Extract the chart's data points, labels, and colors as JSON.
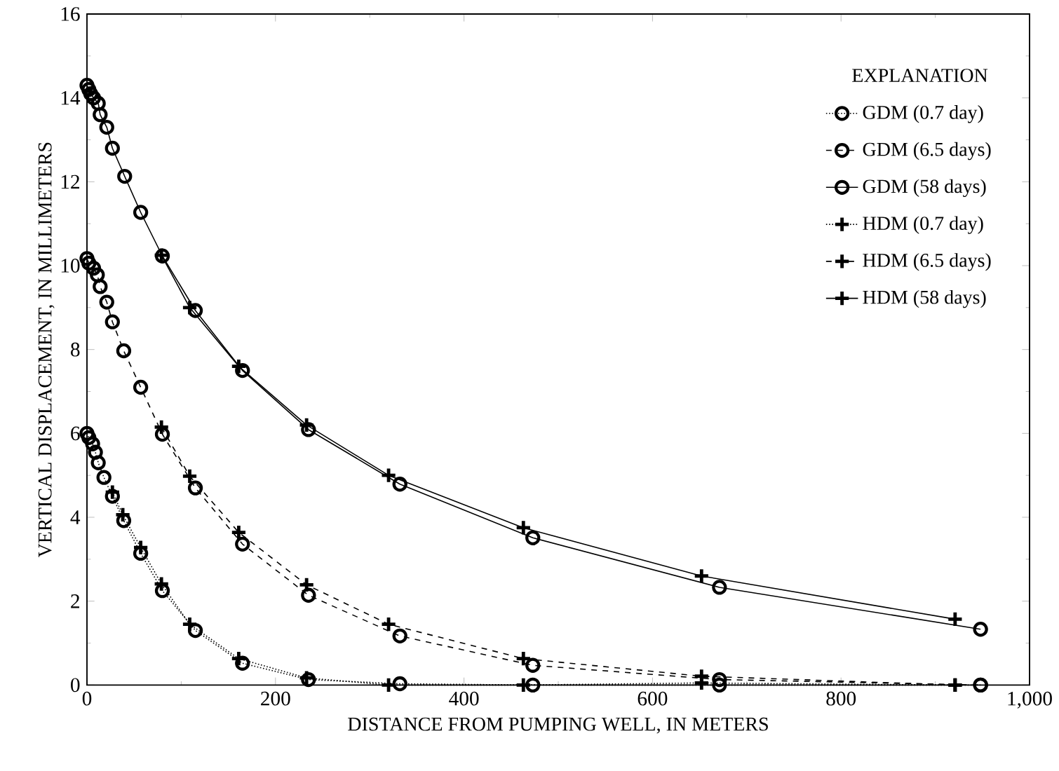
{
  "chart_data": {
    "type": "line",
    "xlabel": "DISTANCE FROM PUMPING WELL, IN METERS",
    "ylabel": "VERTICAL DISPLACEMENT, IN MILLIMETERS",
    "xlim": [
      0,
      1000
    ],
    "ylim": [
      0,
      16
    ],
    "xticks": [
      0,
      200,
      400,
      600,
      800,
      {
        "value": 1000,
        "label": "1,000"
      }
    ],
    "yticks": [
      0,
      2,
      4,
      6,
      8,
      10,
      12,
      14,
      16
    ],
    "legend": "top right",
    "legend_title": "EXPLANATION",
    "series": [
      {
        "name": "GDM (0.7 day)",
        "color": "#000000",
        "marker": "circle",
        "line_style": "dotted",
        "x": [
          0,
          2,
          6,
          9,
          12,
          18,
          27,
          39,
          57,
          80,
          115,
          165,
          235,
          332,
          473,
          671,
          948
        ],
        "values": [
          6.0,
          5.9,
          5.75,
          5.55,
          5.3,
          4.95,
          4.5,
          3.92,
          3.14,
          2.25,
          1.3,
          0.52,
          0.13,
          0.03,
          0,
          0,
          0
        ]
      },
      {
        "name": "GDM (6.5 days)",
        "color": "#000000",
        "marker": "circle",
        "line_style": "dashed",
        "x": [
          0,
          2,
          7,
          11,
          14,
          21,
          27,
          39,
          57,
          80,
          115,
          165,
          235,
          332,
          473,
          671,
          948
        ],
        "values": [
          10.17,
          10.06,
          9.94,
          9.78,
          9.5,
          9.13,
          8.66,
          7.97,
          7.1,
          5.98,
          4.7,
          3.36,
          2.14,
          1.17,
          0.47,
          0.13,
          0
        ]
      },
      {
        "name": "GDM (58 days)",
        "color": "#000000",
        "marker": "circle",
        "line_style": "solid",
        "x": [
          0,
          2,
          4,
          7,
          12,
          14,
          21,
          27,
          40,
          57,
          80,
          115,
          165,
          235,
          332,
          473,
          671,
          948
        ],
        "values": [
          14.3,
          14.2,
          14.1,
          14.0,
          13.87,
          13.6,
          13.3,
          12.8,
          12.13,
          11.27,
          10.23,
          8.93,
          7.5,
          6.09,
          4.79,
          3.51,
          2.33,
          1.33
        ]
      },
      {
        "name": "HDM (0.7 day)",
        "color": "#000000",
        "marker": "cross",
        "line_style": "dotted",
        "x": [
          27,
          38,
          57,
          79,
          109,
          161,
          233,
          320,
          463,
          652,
          921
        ],
        "values": [
          4.6,
          4.06,
          3.28,
          2.41,
          1.45,
          0.63,
          0.17,
          0,
          0,
          0.05,
          0
        ]
      },
      {
        "name": "HDM (6.5 days)",
        "color": "#000000",
        "marker": "cross",
        "line_style": "dashed",
        "x": [
          79,
          109,
          161,
          233,
          320,
          463,
          652,
          921
        ],
        "values": [
          6.15,
          4.98,
          3.64,
          2.39,
          1.45,
          0.63,
          0.21,
          0
        ]
      },
      {
        "name": "HDM (58 days)",
        "color": "#000000",
        "marker": "cross",
        "line_style": "solid",
        "x": [
          79,
          109,
          161,
          233,
          320,
          463,
          652,
          921
        ],
        "values": [
          10.25,
          9.0,
          7.6,
          6.2,
          5.0,
          3.75,
          2.6,
          1.57
        ]
      }
    ]
  }
}
